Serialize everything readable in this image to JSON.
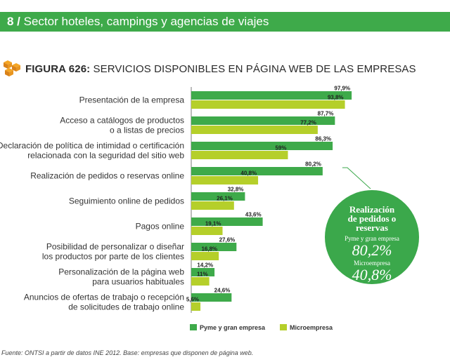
{
  "header": {
    "section_number": "8 /",
    "section_title": "Sector hoteles, campings y agencias de viajes"
  },
  "figure": {
    "label": "FIGURA 626:",
    "title": "SERVICIOS DISPONIBLES EN PÁGINA WEB DE LAS EMPRESAS"
  },
  "colors": {
    "primary": "#3eaa4a",
    "secondary": "#b5cf2a",
    "highlight": "#3ba84b"
  },
  "chart_data": {
    "type": "bar",
    "orientation": "horizontal",
    "categories": [
      [
        "Presentación de la empresa"
      ],
      [
        "Acceso a catálogos de productos",
        "o a listas de precios"
      ],
      [
        "Declaración de política de intimidad o certificación",
        "relacionada con la seguridad del sitio web"
      ],
      [
        "Realización de pedidos o reservas online"
      ],
      [
        "Seguimiento online de pedidos"
      ],
      [
        "Pagos online"
      ],
      [
        "Posibilidad de personalizar o diseñar",
        "los productos por parte de los clientes"
      ],
      [
        "Personalización de la página web",
        "para usuarios habituales"
      ],
      [
        "Anuncios de ofertas de trabajo o recepción",
        "de solicitudes de trabajo online"
      ]
    ],
    "series": [
      {
        "name": "Pyme y gran empresa",
        "values": [
          97.9,
          87.7,
          86.3,
          80.2,
          32.8,
          43.6,
          27.6,
          14.2,
          24.6
        ],
        "labels": [
          "97,9%",
          "87,7%",
          "86,3%",
          "80,2%",
          "32,8%",
          "43,6%",
          "27,6%",
          "14,2%",
          "24,6%"
        ]
      },
      {
        "name": "Microempresa",
        "values": [
          93.8,
          77.2,
          59,
          40.8,
          26.1,
          19.1,
          16.8,
          11,
          5.6
        ],
        "labels": [
          "93,8%",
          "77,2%",
          "59%",
          "40,8%",
          "26,1%",
          "19,1%",
          "16,8%",
          "11%",
          "5,6%"
        ]
      }
    ],
    "xlim": [
      0,
      100
    ],
    "legend_position": "bottom",
    "callout": {
      "title_lines": [
        "Realización",
        "de pedidos o",
        "reservas"
      ],
      "items": [
        {
          "label": "Pyme y gran empresa",
          "value": "80,2%"
        },
        {
          "label": "Microempresa",
          "value": "40,8%"
        }
      ]
    }
  },
  "footer": {
    "source": "Fuente: ONTSI a partir de datos INE 2012. Base: empresas que disponen de página web."
  }
}
